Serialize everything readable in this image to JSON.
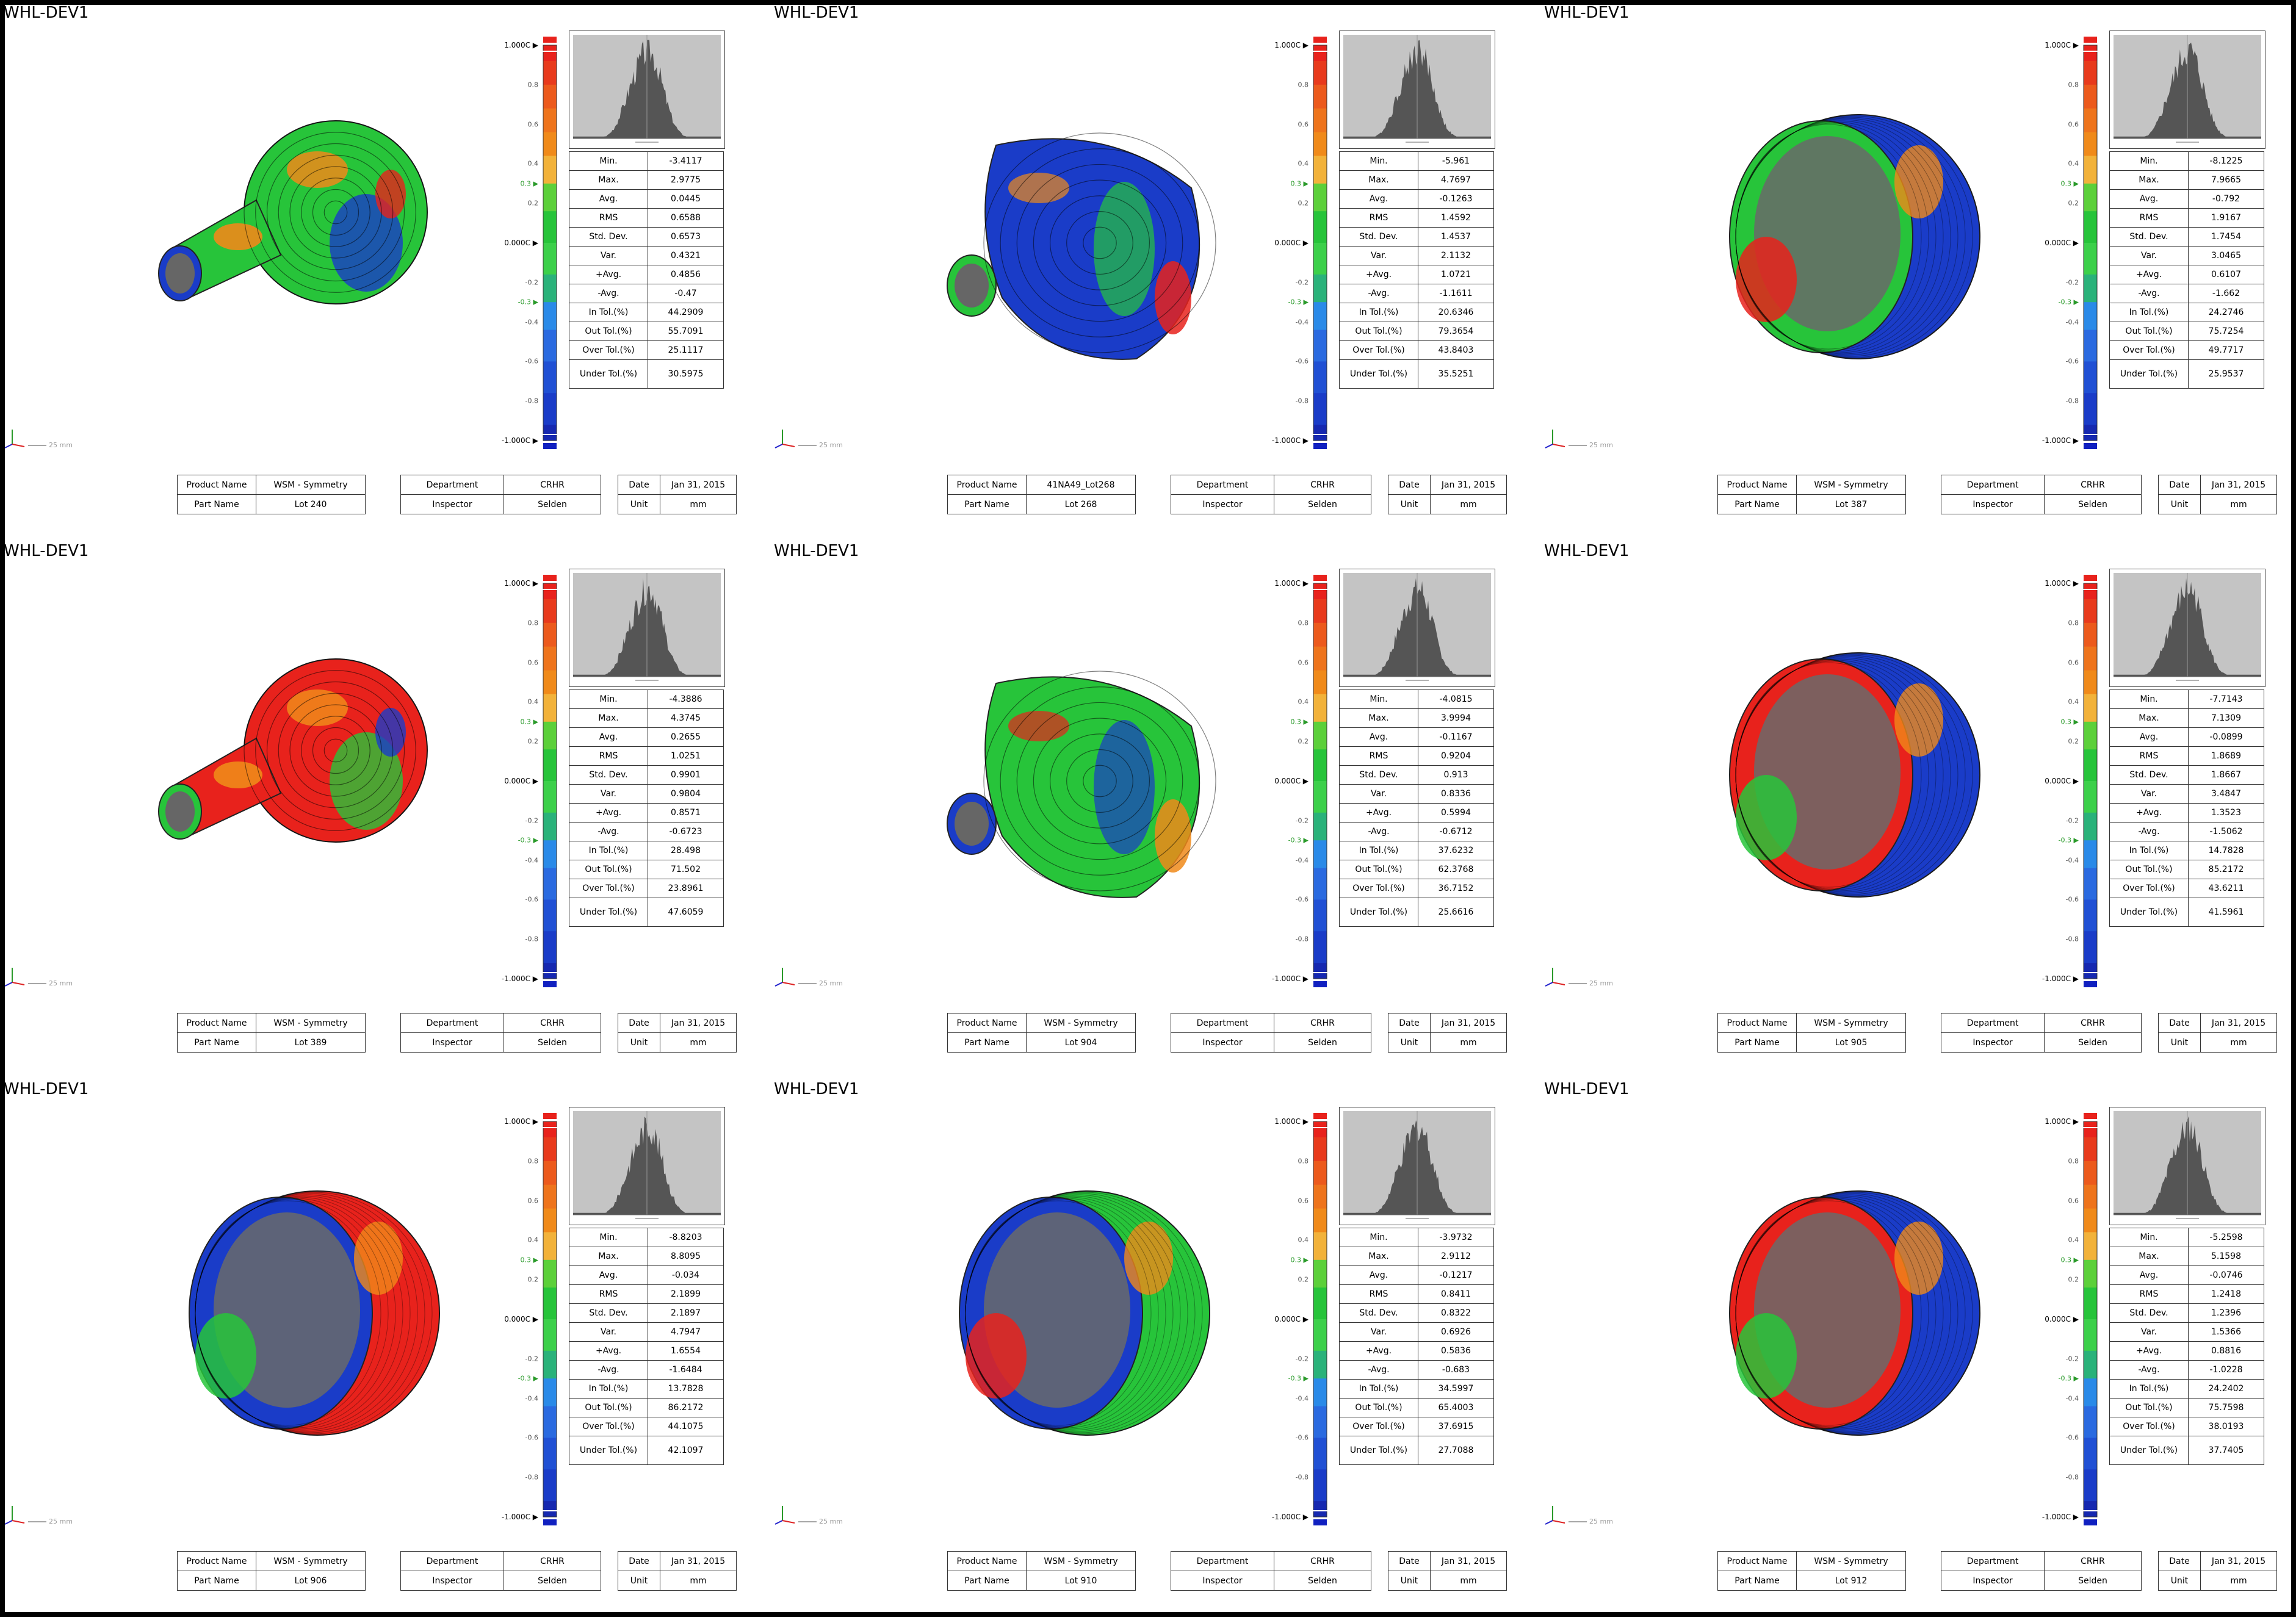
{
  "colors": {
    "red": "#e8221c",
    "orange": "#f08a1a",
    "yellow_orange": "#f2b23a",
    "green": "#27c43a",
    "blue": "#1a3cc8",
    "light_blue": "#3a8af0",
    "histogram_bg": "#c4c4c4",
    "histogram_fill": "#555555"
  },
  "scale_labels": [
    "1.000C",
    "0.8",
    "0.6",
    "0.4",
    "0.3",
    "0.2",
    "0.000C",
    "-0.2",
    "-0.3",
    "-0.4",
    "-0.6",
    "-0.8",
    "-1.000C"
  ],
  "stat_labels": [
    "Min.",
    "Max.",
    "Avg.",
    "RMS",
    "Std. Dev.",
    "Var.",
    "+Avg.",
    "-Avg.",
    "In Tol.(%)",
    "Out Tol.(%)",
    "Over Tol.(%)",
    "Under Tol.(%)"
  ],
  "info_labels": {
    "product_name": "Product Name",
    "part_name": "Part Name",
    "department": "Department",
    "inspector": "Inspector",
    "date": "Date",
    "unit": "Unit"
  },
  "axis_unit": "25 mm",
  "panels": [
    {
      "title": "WHL-DEV1",
      "shape": "bulb",
      "stats": [
        "-3.4117",
        "2.9775",
        "0.0445",
        "0.6588",
        "0.6573",
        "0.4321",
        "0.4856",
        "-0.47",
        "44.2909",
        "55.7091",
        "25.1117",
        "30.5975"
      ],
      "product": "WSM - Symmetry",
      "part": "Lot 240",
      "department": "CRHR",
      "inspector": "Selden",
      "date": "Jan 31, 2015",
      "unit": "mm"
    },
    {
      "title": "WHL-DEV1",
      "shape": "bowl",
      "stats": [
        "-5.961",
        "4.7697",
        "-0.1263",
        "1.4592",
        "1.4537",
        "2.1132",
        "1.0721",
        "-1.1611",
        "20.6346",
        "79.3654",
        "43.8403",
        "35.5251"
      ],
      "product": "41NA49_Lot268",
      "part": "Lot 268",
      "department": "CRHR",
      "inspector": "Selden",
      "date": "Jan 31, 2015",
      "unit": "mm"
    },
    {
      "title": "WHL-DEV1",
      "shape": "ring",
      "stats": [
        "-8.1225",
        "7.9665",
        "-0.792",
        "1.9167",
        "1.7454",
        "3.0465",
        "0.6107",
        "-1.662",
        "24.2746",
        "75.7254",
        "49.7717",
        "25.9537"
      ],
      "product": "WSM - Symmetry",
      "part": "Lot 387",
      "department": "CRHR",
      "inspector": "Selden",
      "date": "Jan 31, 2015",
      "unit": "mm"
    },
    {
      "title": "WHL-DEV1",
      "shape": "bulb",
      "stats": [
        "-4.3886",
        "4.3745",
        "0.2655",
        "1.0251",
        "0.9901",
        "0.9804",
        "0.8571",
        "-0.6723",
        "28.498",
        "71.502",
        "23.8961",
        "47.6059"
      ],
      "product": "WSM - Symmetry",
      "part": "Lot 389",
      "department": "CRHR",
      "inspector": "Selden",
      "date": "Jan 31, 2015",
      "unit": "mm"
    },
    {
      "title": "WHL-DEV1",
      "shape": "bowl",
      "stats": [
        "-4.0815",
        "3.9994",
        "-0.1167",
        "0.9204",
        "0.913",
        "0.8336",
        "0.5994",
        "-0.6712",
        "37.6232",
        "62.3768",
        "36.7152",
        "25.6616"
      ],
      "product": "WSM - Symmetry",
      "part": "Lot 904",
      "department": "CRHR",
      "inspector": "Selden",
      "date": "Jan 31, 2015",
      "unit": "mm"
    },
    {
      "title": "WHL-DEV1",
      "shape": "ring",
      "stats": [
        "-7.7143",
        "7.1309",
        "-0.0899",
        "1.8689",
        "1.8667",
        "3.4847",
        "1.3523",
        "-1.5062",
        "14.7828",
        "85.2172",
        "43.6211",
        "41.5961"
      ],
      "product": "WSM - Symmetry",
      "part": "Lot 905",
      "department": "CRHR",
      "inspector": "Selden",
      "date": "Jan 31, 2015",
      "unit": "mm"
    },
    {
      "title": "WHL-DEV1",
      "shape": "ring",
      "stats": [
        "-8.8203",
        "8.8095",
        "-0.034",
        "2.1899",
        "2.1897",
        "4.7947",
        "1.6554",
        "-1.6484",
        "13.7828",
        "86.2172",
        "44.1075",
        "42.1097"
      ],
      "product": "WSM - Symmetry",
      "part": "Lot 906",
      "department": "CRHR",
      "inspector": "Selden",
      "date": "Jan 31, 2015",
      "unit": "mm"
    },
    {
      "title": "WHL-DEV1",
      "shape": "ring",
      "stats": [
        "-3.9732",
        "2.9112",
        "-0.1217",
        "0.8411",
        "0.8322",
        "0.6926",
        "0.5836",
        "-0.683",
        "34.5997",
        "65.4003",
        "37.6915",
        "27.7088"
      ],
      "product": "WSM - Symmetry",
      "part": "Lot 910",
      "department": "CRHR",
      "inspector": "Selden",
      "date": "Jan 31, 2015",
      "unit": "mm"
    },
    {
      "title": "WHL-DEV1",
      "shape": "ring",
      "stats": [
        "-5.2598",
        "5.1598",
        "-0.0746",
        "1.2418",
        "1.2396",
        "1.5366",
        "0.8816",
        "-1.0228",
        "24.2402",
        "75.7598",
        "38.0193",
        "37.7405"
      ],
      "product": "WSM - Symmetry",
      "part": "Lot 912",
      "department": "CRHR",
      "inspector": "Selden",
      "date": "Jan 31, 2015",
      "unit": "mm"
    }
  ]
}
